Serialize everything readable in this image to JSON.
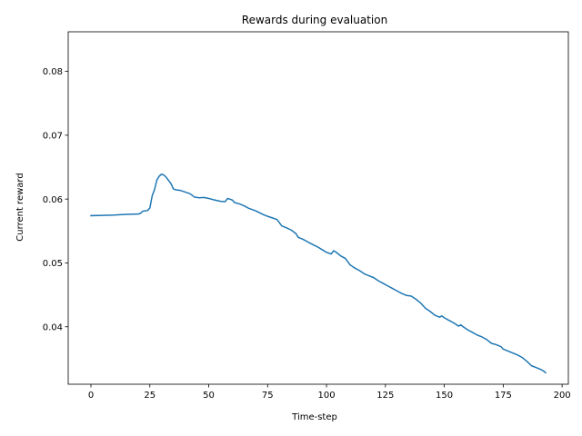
{
  "chart_data": {
    "type": "line",
    "title": "Rewards during evaluation",
    "xlabel": "Time-step",
    "ylabel": "Current reward",
    "xlim": [
      -9.65,
      202.65
    ],
    "ylim": [
      0.031,
      0.0862
    ],
    "grid": false,
    "x_ticks": [
      0,
      25,
      50,
      75,
      100,
      125,
      150,
      175,
      200
    ],
    "x_tick_labels": [
      "0",
      "25",
      "50",
      "75",
      "100",
      "125",
      "150",
      "175",
      "200"
    ],
    "y_ticks": [
      0.04,
      0.05,
      0.06,
      0.07,
      0.08
    ],
    "y_tick_labels": [
      "0.04",
      "0.05",
      "0.06",
      "0.07",
      "0.08"
    ],
    "series": [
      {
        "color": "#1f77b4",
        "points": [
          [
            0,
            0.0574
          ],
          [
            5,
            0.05745
          ],
          [
            10,
            0.0575
          ],
          [
            15,
            0.0576
          ],
          [
            20,
            0.05765
          ],
          [
            21,
            0.05775
          ],
          [
            22,
            0.0581
          ],
          [
            24,
            0.0582
          ],
          [
            25,
            0.0586
          ],
          [
            26,
            0.0605
          ],
          [
            27,
            0.0615
          ],
          [
            28,
            0.063
          ],
          [
            29,
            0.0636
          ],
          [
            30,
            0.0639
          ],
          [
            31,
            0.06375
          ],
          [
            32,
            0.0634
          ],
          [
            33,
            0.0629
          ],
          [
            34,
            0.0624
          ],
          [
            35,
            0.0616
          ],
          [
            36,
            0.06145
          ],
          [
            38,
            0.06135
          ],
          [
            40,
            0.0611
          ],
          [
            42,
            0.06085
          ],
          [
            44,
            0.0603
          ],
          [
            46,
            0.0602
          ],
          [
            48,
            0.06025
          ],
          [
            50,
            0.0601
          ],
          [
            52,
            0.0599
          ],
          [
            55,
            0.05965
          ],
          [
            57,
            0.0596
          ],
          [
            58,
            0.0601
          ],
          [
            60,
            0.05985
          ],
          [
            61,
            0.05945
          ],
          [
            63,
            0.05925
          ],
          [
            65,
            0.05895
          ],
          [
            67,
            0.05855
          ],
          [
            70,
            0.05815
          ],
          [
            73,
            0.0576
          ],
          [
            75,
            0.0573
          ],
          [
            77,
            0.05705
          ],
          [
            79,
            0.0568
          ],
          [
            81,
            0.0558
          ],
          [
            83,
            0.0555
          ],
          [
            85,
            0.05515
          ],
          [
            87,
            0.0546
          ],
          [
            88,
            0.054
          ],
          [
            90,
            0.0537
          ],
          [
            92,
            0.0533
          ],
          [
            94,
            0.0529
          ],
          [
            96,
            0.05255
          ],
          [
            98,
            0.0521
          ],
          [
            100,
            0.05165
          ],
          [
            102,
            0.0514
          ],
          [
            103,
            0.0519
          ],
          [
            104,
            0.0517
          ],
          [
            106,
            0.0511
          ],
          [
            108,
            0.0507
          ],
          [
            110,
            0.0497
          ],
          [
            112,
            0.0492
          ],
          [
            114,
            0.0488
          ],
          [
            116,
            0.0483
          ],
          [
            118,
            0.048
          ],
          [
            120,
            0.0477
          ],
          [
            122,
            0.0472
          ],
          [
            124,
            0.0468
          ],
          [
            126,
            0.0464
          ],
          [
            128,
            0.046
          ],
          [
            130,
            0.0456
          ],
          [
            132,
            0.0452
          ],
          [
            134,
            0.0449
          ],
          [
            136,
            0.0448
          ],
          [
            138,
            0.0443
          ],
          [
            140,
            0.0437
          ],
          [
            142,
            0.0429
          ],
          [
            144,
            0.0424
          ],
          [
            146,
            0.0418
          ],
          [
            148,
            0.0415
          ],
          [
            149,
            0.0417
          ],
          [
            150,
            0.0414
          ],
          [
            152,
            0.041
          ],
          [
            154,
            0.0406
          ],
          [
            156,
            0.0401
          ],
          [
            157,
            0.0403
          ],
          [
            158,
            0.04
          ],
          [
            160,
            0.0395
          ],
          [
            162,
            0.0391
          ],
          [
            164,
            0.0387
          ],
          [
            166,
            0.0384
          ],
          [
            168,
            0.038
          ],
          [
            170,
            0.0374
          ],
          [
            172,
            0.0372
          ],
          [
            174,
            0.0369
          ],
          [
            175,
            0.0365
          ],
          [
            177,
            0.0362
          ],
          [
            179,
            0.0359
          ],
          [
            181,
            0.0356
          ],
          [
            183,
            0.0352
          ],
          [
            185,
            0.0346
          ],
          [
            187,
            0.0339
          ],
          [
            189,
            0.0336
          ],
          [
            191,
            0.0333
          ],
          [
            192,
            0.0331
          ],
          [
            193,
            0.0328
          ]
        ]
      }
    ]
  }
}
